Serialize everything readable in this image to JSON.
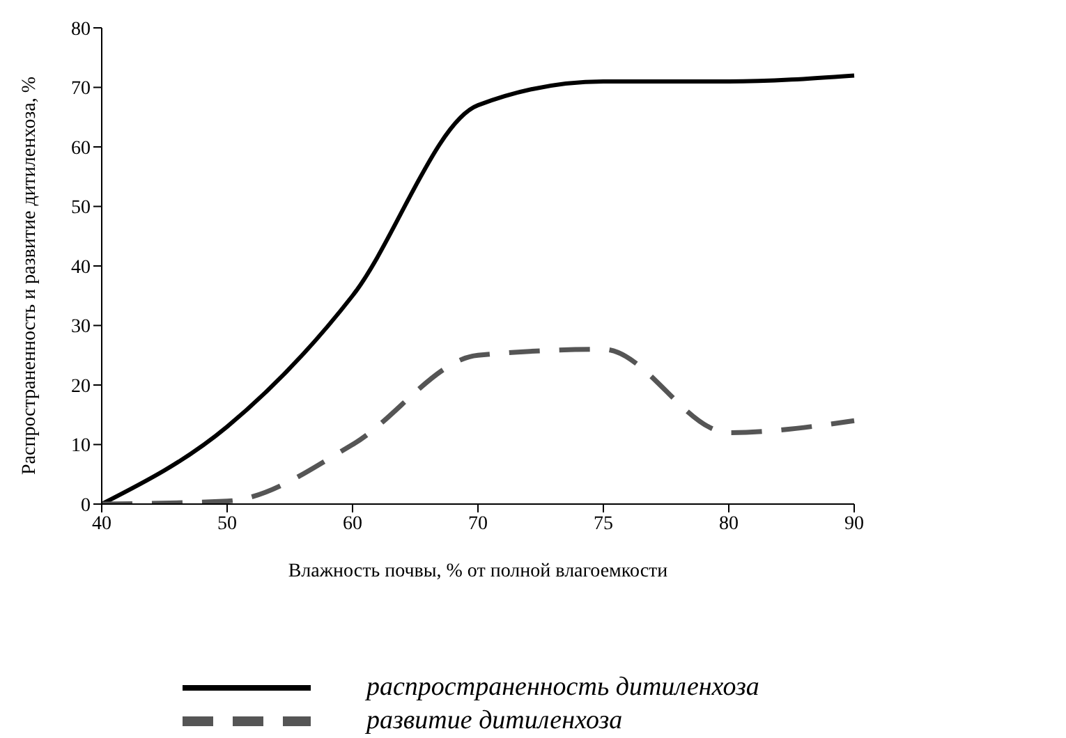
{
  "chart_data": {
    "type": "line",
    "xlabel": "Влажность почвы, % от полной влагоемкости",
    "ylabel": "Распространенность и развитие дитиленхоза, %",
    "categories": [
      "40",
      "50",
      "60",
      "70",
      "75",
      "80",
      "90"
    ],
    "series": [
      {
        "name": "распространенность дитиленхоза",
        "color": "#000000",
        "line_style": "solid",
        "values": [
          0,
          13,
          35,
          67,
          71,
          71,
          72
        ]
      },
      {
        "name": "развитие дитиленхоза",
        "color": "#555555",
        "line_style": "dashed",
        "values": [
          0,
          0.5,
          10,
          25,
          26,
          12,
          14
        ]
      }
    ],
    "ylim": [
      0,
      80
    ],
    "yticks": [
      0,
      10,
      20,
      30,
      40,
      50,
      60,
      70,
      80
    ],
    "grid": false,
    "legend": "bottom right",
    "marker": "none"
  }
}
